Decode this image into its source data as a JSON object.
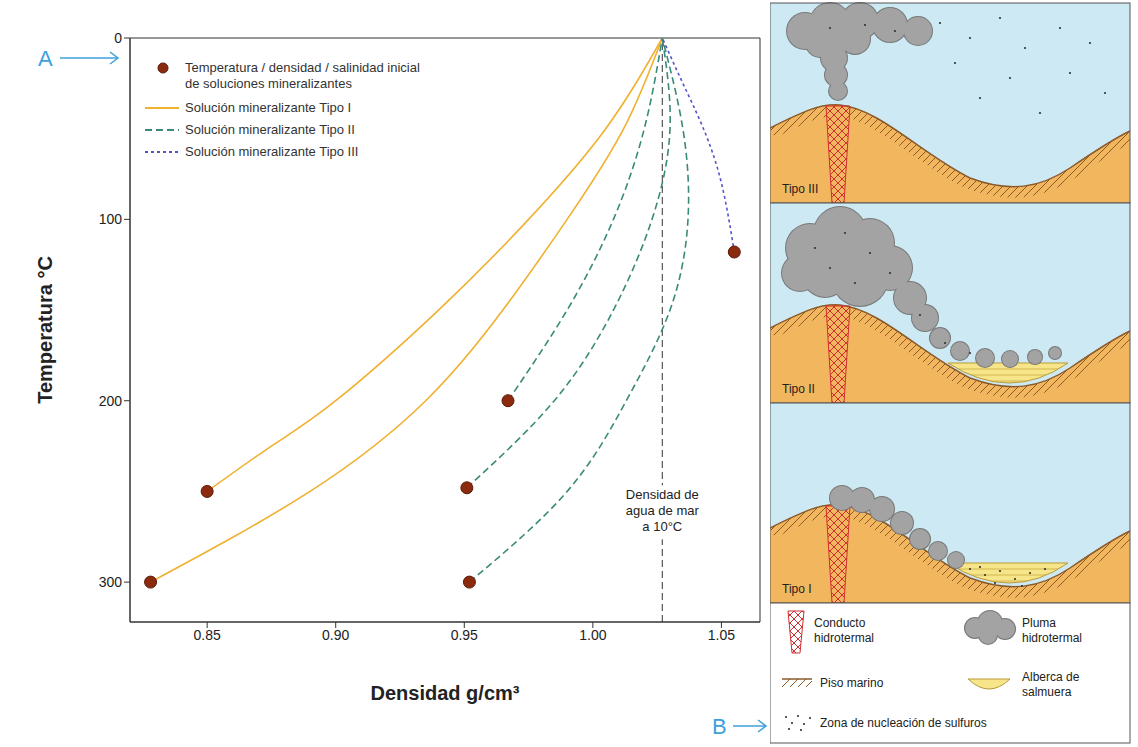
{
  "chart_data": {
    "type": "line",
    "x_label": "Densidad g/cm³",
    "y_label": "Temperatura °C",
    "xlim": [
      0.82,
      1.065
    ],
    "xticks": [
      0.85,
      {
        "value": 0.9,
        "label": "0.90"
      },
      0.95,
      {
        "value": 1.0,
        "label": "1.00"
      },
      1.05
    ],
    "ylim": [
      0,
      322
    ],
    "yticks": [
      0,
      100,
      200,
      300
    ],
    "grid": false,
    "legend": "upper left",
    "series": [
      {
        "name": "Temperatura / densidad / salinidad inicial de soluciones mineralizantes",
        "type": "scatter",
        "marker": "circle",
        "color": "#8b2a0e",
        "x": [
          0.85,
          0.828,
          0.967,
          0.951,
          0.952,
          1.055
        ],
        "y": [
          250,
          300,
          200,
          248,
          300,
          118
        ]
      },
      {
        "name": "Solución mineralizante Tipo I",
        "type": "line",
        "line_style": "solid",
        "color": "#f0b030",
        "curves": [
          {
            "x": [
              0.85,
              0.875,
              0.9,
              0.94,
              0.975,
              1.005,
              1.027
            ],
            "y": [
              250,
              225,
              200,
              150,
              100,
              50,
              0
            ]
          },
          {
            "x": [
              0.828,
              0.89,
              0.935,
              0.965,
              0.99,
              1.012,
              1.027
            ],
            "y": [
              300,
              250,
              200,
              150,
              100,
              50,
              0
            ]
          }
        ]
      },
      {
        "name": "Solución mineralizante Tipo II",
        "type": "line",
        "line_style": "dashed",
        "color": "#3a8a7a",
        "curves": [
          {
            "x": [
              0.967,
              0.99,
              1.008,
              1.02,
              1.027
            ],
            "y": [
              200,
              150,
              100,
              50,
              0
            ]
          },
          {
            "x": [
              0.951,
              0.985,
              1.008,
              1.023,
              1.03,
              1.027
            ],
            "y": [
              248,
              200,
              150,
              100,
              50,
              0
            ]
          },
          {
            "x": [
              0.952,
              0.99,
              1.013,
              1.03,
              1.037,
              1.035,
              1.027
            ],
            "y": [
              300,
              250,
              200,
              150,
              100,
              50,
              0
            ]
          }
        ]
      },
      {
        "name": "Solución mineralizante Tipo III",
        "type": "line",
        "line_style": "dotted",
        "color": "#5555cc",
        "curves": [
          {
            "x": [
              1.055,
              1.05,
              1.043,
              1.035,
              1.027
            ],
            "y": [
              118,
              80,
              50,
              25,
              0
            ]
          }
        ]
      }
    ],
    "reference_lines": [
      {
        "x": 1.027,
        "label": "Densidad de agua de mar a 10°C",
        "line_style": "dashed"
      }
    ]
  },
  "diagram": {
    "panels": [
      {
        "label": "Tipo III"
      },
      {
        "label": "Tipo II"
      },
      {
        "label": "Tipo I"
      }
    ],
    "legend": [
      {
        "label": "Conducto hidrotermal"
      },
      {
        "label": "Pluma hidrotermal"
      },
      {
        "label": "Piso marino"
      },
      {
        "label": "Alberca de salmuera"
      },
      {
        "label": "Zona de nucleación de sulfuros"
      }
    ]
  },
  "annotations": [
    {
      "text": "A"
    },
    {
      "text": "B"
    }
  ]
}
